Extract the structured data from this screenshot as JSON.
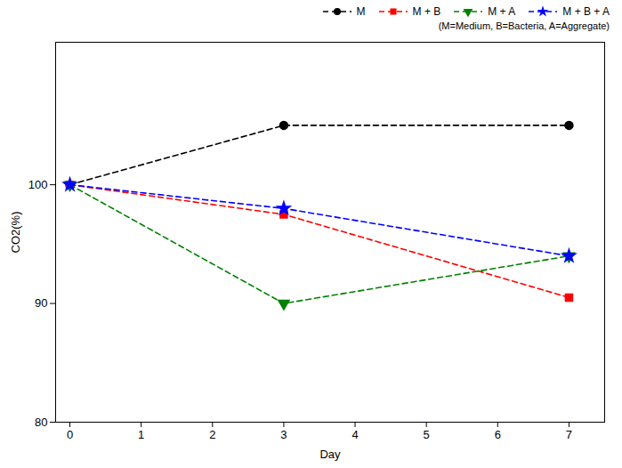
{
  "chart_data": {
    "type": "line",
    "xlabel": "Day",
    "ylabel": "CO2(%)",
    "x": [
      0,
      3,
      7
    ],
    "series": [
      {
        "name": "M",
        "color": "#000000",
        "marker": "circle",
        "line_style": "dashed",
        "values": [
          100,
          105,
          105
        ]
      },
      {
        "name": "M + B",
        "color": "#ff0000",
        "marker": "square",
        "line_style": "dashed",
        "values": [
          100,
          97.5,
          90.5
        ]
      },
      {
        "name": "M + A",
        "color": "#008000",
        "marker": "triangle-down",
        "line_style": "dashed",
        "values": [
          100,
          90,
          94
        ]
      },
      {
        "name": "M + B + A",
        "color": "#0000ff",
        "marker": "star",
        "line_style": "dashed",
        "values": [
          100,
          98,
          94
        ]
      }
    ],
    "xlim": [
      -0.2,
      7.5
    ],
    "ylim": [
      80,
      112
    ],
    "xticks": [
      0,
      1,
      2,
      3,
      4,
      5,
      6,
      7
    ],
    "yticks": [
      80,
      90,
      100
    ],
    "annotations": [
      "(M=Medium, B=Bacteria, A=Aggregate)"
    ],
    "legend": "upper right",
    "grid": false
  }
}
